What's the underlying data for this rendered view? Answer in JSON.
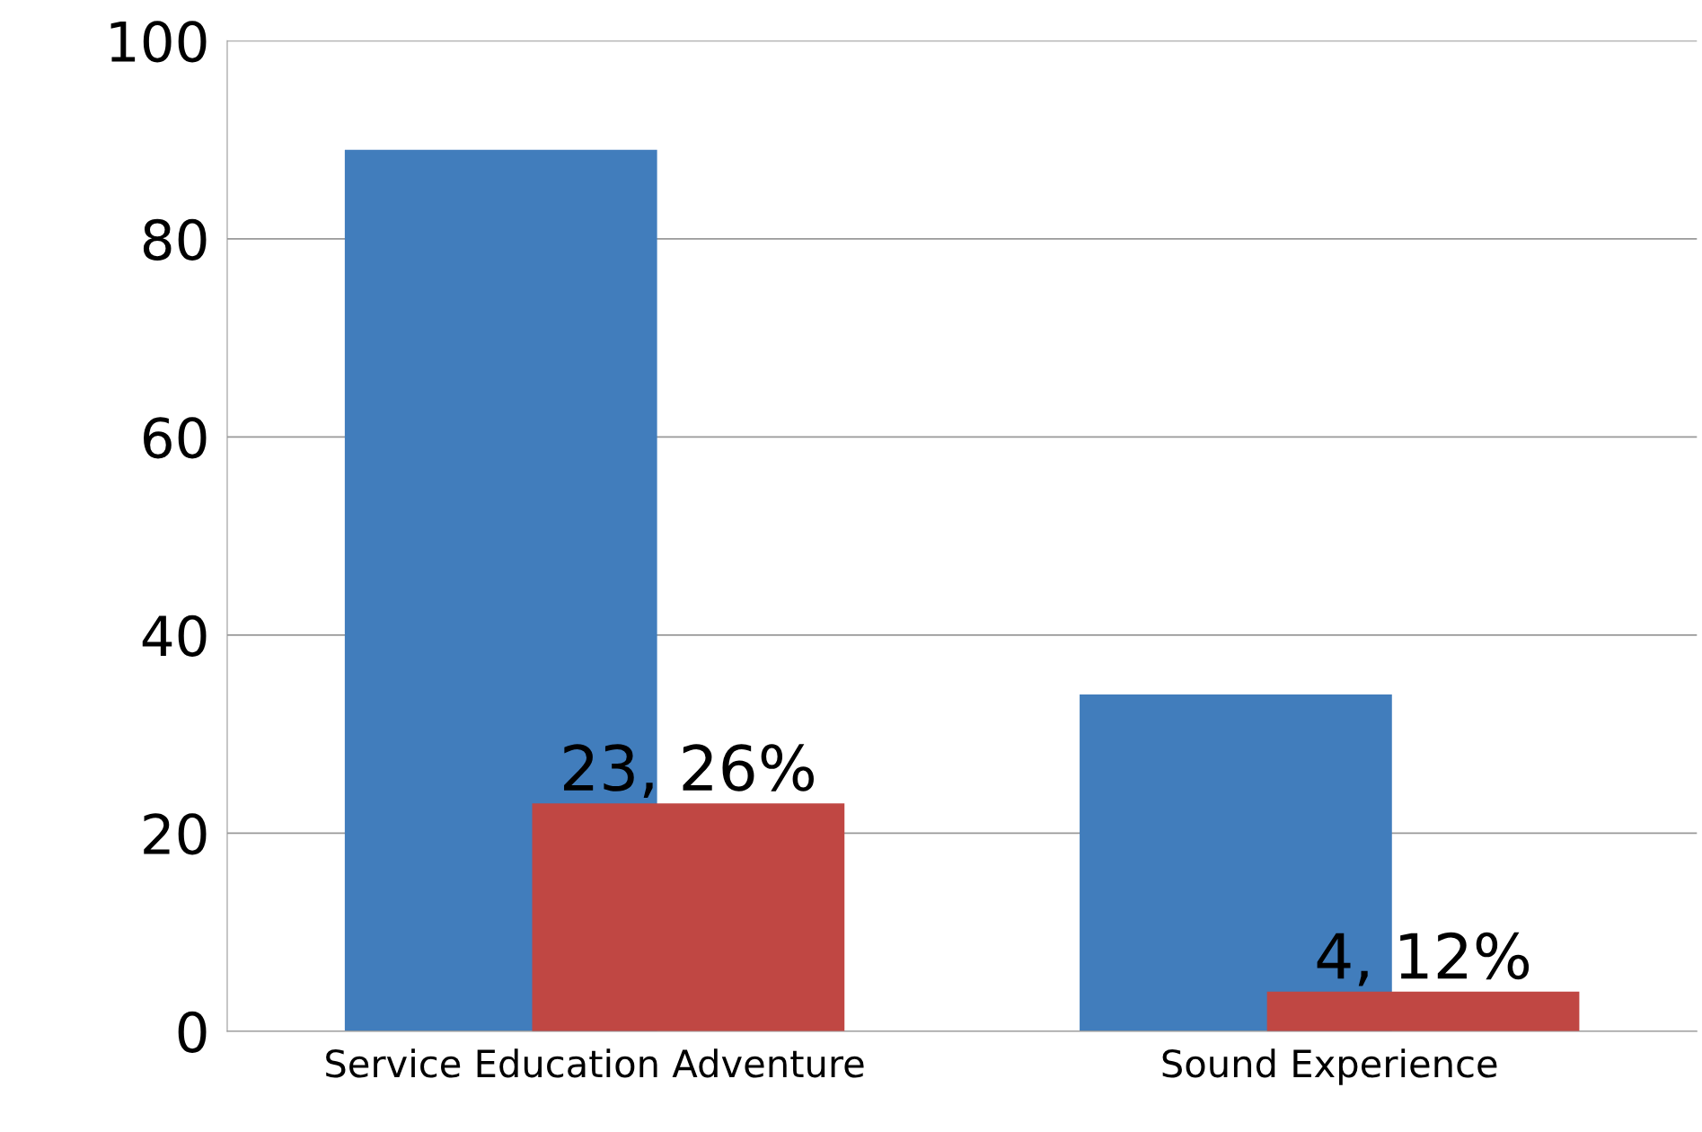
{
  "chart_data": {
    "type": "bar",
    "categories": [
      "Service Education Adventure",
      "Sound Experience"
    ],
    "series": [
      {
        "color": "#417dbc",
        "values": [
          89,
          34
        ]
      },
      {
        "color": "#c04743",
        "values": [
          23,
          4
        ],
        "value_labels": [
          "23, 26%",
          "4, 12%"
        ]
      }
    ],
    "ylim": [
      0,
      100
    ],
    "yticks": [
      0,
      20,
      40,
      60,
      80,
      100
    ],
    "grid": "y"
  }
}
